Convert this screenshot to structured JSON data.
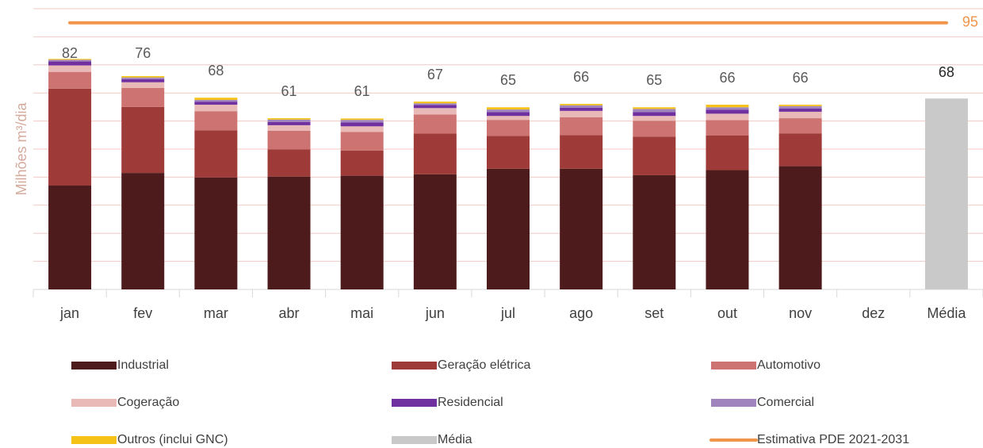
{
  "chart_data": {
    "type": "stacked_bar",
    "y_axis_label": "Milhões m³/dia",
    "categories": [
      "jan",
      "fev",
      "mar",
      "abr",
      "mai",
      "jun",
      "jul",
      "ago",
      "set",
      "out",
      "nov",
      "dez",
      "Média"
    ],
    "ylim": [
      0,
      100
    ],
    "yticks": [
      0,
      10,
      20,
      30,
      40,
      50,
      60,
      70,
      80,
      90,
      100
    ],
    "grid": true,
    "tick_labels": false,
    "totals": [
      82,
      76,
      68,
      61,
      61,
      67,
      65,
      66,
      65,
      66,
      66,
      null,
      null
    ],
    "series": [
      {
        "name": "Industrial",
        "color": "#4e1b1c",
        "values": [
          37.0,
          41.5,
          39.9,
          40.2,
          40.5,
          41.0,
          43.0,
          43.0,
          40.7,
          42.5,
          43.9,
          null,
          null
        ]
      },
      {
        "name": "Geração elétrica",
        "color": "#9e3a38",
        "values": [
          34.5,
          23.5,
          16.8,
          9.7,
          9.0,
          14.5,
          11.7,
          12.0,
          13.7,
          12.4,
          11.7,
          null,
          null
        ]
      },
      {
        "name": "Automotivo",
        "color": "#cd7472",
        "values": [
          6.0,
          6.8,
          6.8,
          6.6,
          6.6,
          6.8,
          5.7,
          6.3,
          5.7,
          5.4,
          5.4,
          null,
          null
        ]
      },
      {
        "name": "Cogeração",
        "color": "#e9b9b7",
        "values": [
          2.3,
          2.0,
          2.3,
          2.0,
          2.0,
          2.3,
          1.4,
          2.3,
          1.7,
          2.3,
          2.3,
          null,
          null
        ]
      },
      {
        "name": "Residencial",
        "color": "#7030a0",
        "values": [
          1.4,
          1.1,
          1.1,
          1.1,
          1.4,
          1.1,
          1.4,
          1.1,
          1.4,
          1.4,
          1.1,
          null,
          null
        ]
      },
      {
        "name": "Comercial",
        "color": "#9f84bd",
        "values": [
          0.6,
          0.6,
          0.6,
          0.9,
          0.9,
          0.6,
          0.9,
          0.9,
          1.1,
          0.9,
          0.9,
          null,
          null
        ]
      },
      {
        "name": "Outros (inclui GNC)",
        "color": "#f5c218",
        "values": [
          0.3,
          0.5,
          0.8,
          0.5,
          0.5,
          0.6,
          0.8,
          0.5,
          0.6,
          0.9,
          0.5,
          null,
          null
        ]
      },
      {
        "name": "Média",
        "color": "#c9c9c9",
        "values": [
          null,
          null,
          null,
          null,
          null,
          null,
          null,
          null,
          null,
          null,
          null,
          null,
          68
        ]
      },
      {
        "name": "Estimativa PDE 2021-2031",
        "color": "#f0954a",
        "type": "line",
        "values": [
          95,
          95,
          95,
          95,
          95,
          95,
          95,
          95,
          95,
          95,
          95,
          95,
          95
        ]
      }
    ]
  }
}
